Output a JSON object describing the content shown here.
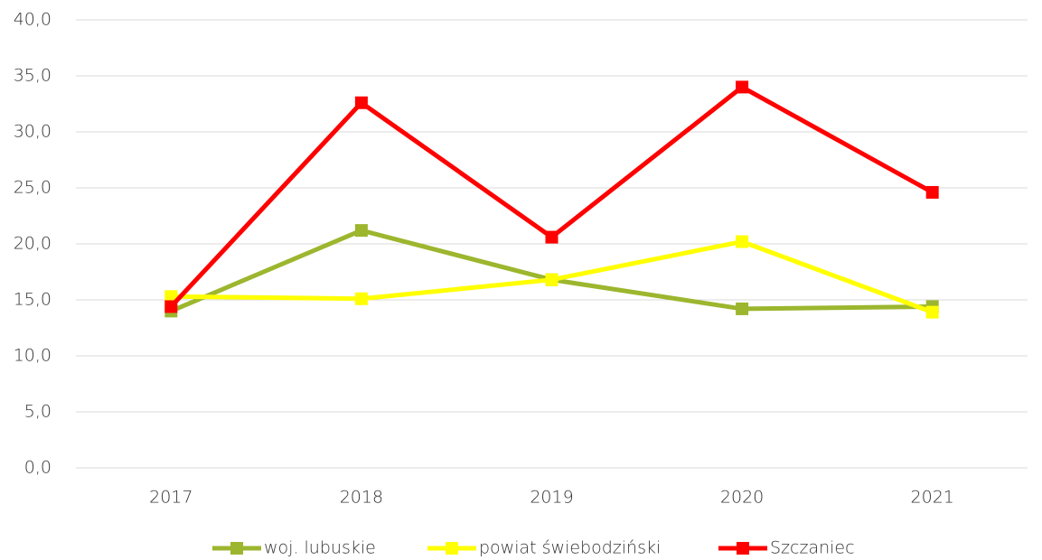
{
  "chart_data": {
    "type": "line",
    "categories": [
      "2017",
      "2018",
      "2019",
      "2020",
      "2021"
    ],
    "series": [
      {
        "name": "woj. lubuskie",
        "color": "#9cb62e",
        "values": [
          14.0,
          21.2,
          16.8,
          14.2,
          14.4
        ]
      },
      {
        "name": "powiat świebodziński",
        "color": "#ffff00",
        "values": [
          15.3,
          15.1,
          16.8,
          20.2,
          13.9
        ]
      },
      {
        "name": "Szczaniec",
        "color": "#ff0000",
        "values": [
          14.4,
          32.6,
          20.6,
          34.0,
          24.6
        ]
      }
    ],
    "ylim": [
      0,
      40
    ],
    "yticks": [
      {
        "value": 0,
        "label": "0,0"
      },
      {
        "value": 5,
        "label": "5,0"
      },
      {
        "value": 10,
        "label": "10,0"
      },
      {
        "value": 15,
        "label": "15,0"
      },
      {
        "value": 20,
        "label": "20,0"
      },
      {
        "value": 25,
        "label": "25,0"
      },
      {
        "value": 30,
        "label": "30,0"
      },
      {
        "value": 35,
        "label": "35,0"
      },
      {
        "value": 40,
        "label": "40,0"
      }
    ],
    "grid": true,
    "legend": "bottom"
  }
}
